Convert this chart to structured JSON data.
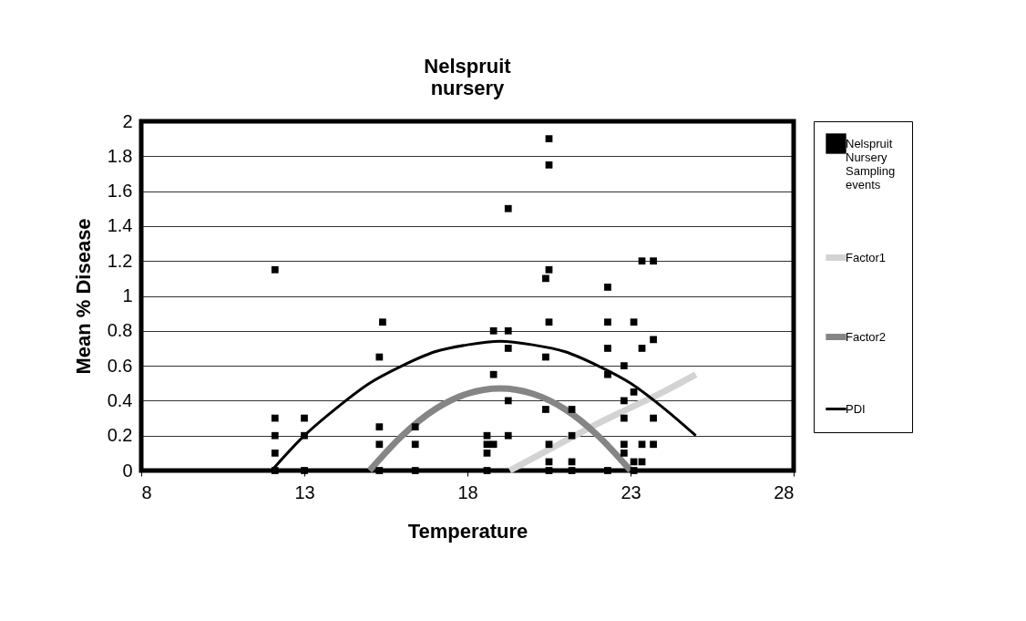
{
  "chart_data": {
    "type": "scatter",
    "title": "Nelspruit nursery",
    "xlabel": "Temperature",
    "ylabel": "Mean % Disease",
    "xlim": [
      8,
      28
    ],
    "xticks": [
      8,
      13,
      18,
      23,
      28
    ],
    "ylim": [
      0,
      2
    ],
    "yticks": [
      0,
      0.2,
      0.4,
      0.6,
      0.8,
      1,
      1.2,
      1.4,
      1.6,
      1.8,
      2
    ],
    "grid": "y",
    "legend": "right",
    "series": [
      {
        "name": "Nelspruit Nursery Sampling events",
        "marker": "square",
        "color": "#000000",
        "x": [
          12.1,
          12.1,
          12.1,
          12.1,
          12.1,
          13.0,
          13.0,
          13.0,
          15.3,
          15.3,
          15.3,
          15.3,
          15.4,
          16.4,
          16.4,
          16.4,
          18.6,
          18.6,
          18.6,
          18.6,
          18.8,
          18.8,
          18.8,
          19.25,
          19.25,
          19.25,
          19.25,
          19.25,
          20.5,
          20.5,
          20.5,
          20.5,
          20.5,
          20.5,
          20.5,
          20.4,
          20.4,
          20.4,
          21.2,
          21.2,
          21.2,
          21.2,
          22.3,
          22.3,
          22.3,
          22.3,
          22.3,
          22.8,
          22.8,
          22.8,
          22.8,
          22.8,
          23.1,
          23.1,
          23.1,
          23.1,
          23.35,
          23.35,
          23.35,
          23.35,
          23.7,
          23.7,
          23.7,
          23.7
        ],
        "values": [
          1.15,
          0.3,
          0.2,
          0.1,
          0,
          0.3,
          0.2,
          0,
          0.65,
          0.25,
          0.15,
          0,
          0.85,
          0.25,
          0.15,
          0,
          0.2,
          0.15,
          0.1,
          0,
          0.8,
          0.55,
          0.15,
          1.5,
          0.8,
          0.7,
          0.4,
          0.2,
          1.9,
          1.75,
          1.15,
          0.85,
          0.15,
          0.05,
          0,
          1.1,
          0.65,
          0.35,
          0.35,
          0.2,
          0.05,
          0,
          1.05,
          0.85,
          0.7,
          0.55,
          0,
          0.6,
          0.4,
          0.3,
          0.15,
          0.1,
          0.85,
          0.45,
          0.05,
          0,
          1.2,
          0.7,
          0.15,
          0.05,
          1.2,
          0.75,
          0.3,
          0.15
        ]
      },
      {
        "name": "Factor1",
        "type": "line",
        "color": "#d3d3d3",
        "x": [
          19.3,
          20,
          21,
          22,
          23,
          24,
          25
        ],
        "values": [
          0,
          0.07,
          0.17,
          0.27,
          0.36,
          0.45,
          0.55
        ]
      },
      {
        "name": "Factor2",
        "type": "line",
        "color": "#858585",
        "x": [
          15,
          16,
          17,
          18,
          19,
          20,
          21,
          22,
          23
        ],
        "values": [
          0,
          0.2,
          0.35,
          0.44,
          0.47,
          0.44,
          0.35,
          0.2,
          0
        ]
      },
      {
        "name": "PDI",
        "type": "line",
        "color": "#000000",
        "x": [
          12,
          13,
          14,
          15,
          16,
          17,
          18,
          19,
          20,
          21,
          22,
          23,
          24,
          25
        ],
        "values": [
          0,
          0.2,
          0.36,
          0.5,
          0.6,
          0.68,
          0.72,
          0.74,
          0.72,
          0.68,
          0.6,
          0.5,
          0.36,
          0.2
        ]
      }
    ]
  }
}
